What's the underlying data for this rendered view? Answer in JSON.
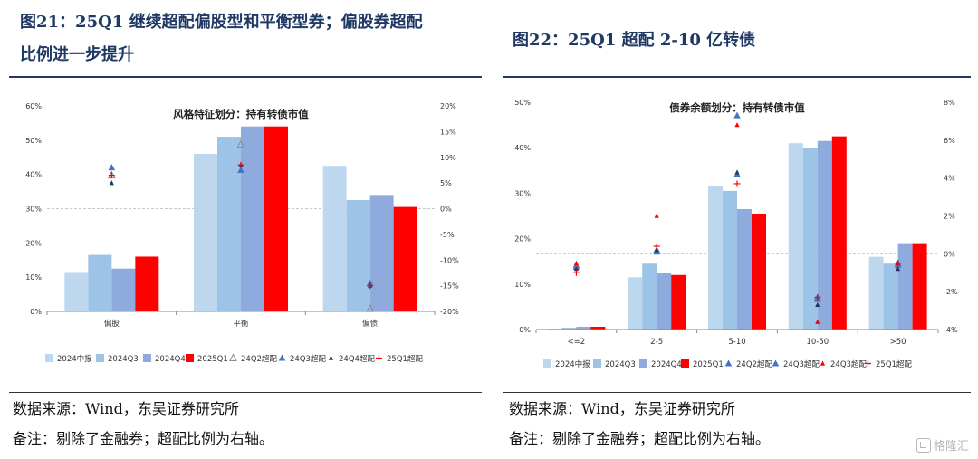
{
  "left": {
    "title_line1": "图21：25Q1 继续超配偏股型和平衡型券；偏股券超配",
    "title_line2": "比例进一步提升",
    "source": "数据来源：Wind，东吴证券研究所",
    "note": "备注：剔除了金融券；超配比例为右轴。"
  },
  "right": {
    "title": "图22：25Q1 超配 2-10 亿转债",
    "source": "数据来源：Wind，东吴证券研究所",
    "note": "备注：剔除了金融券；超配比例为右轴。"
  },
  "watermark": "格隆汇",
  "colors": {
    "s1": "#bdd7ee",
    "s2": "#9dc3e6",
    "s3": "#8faadc",
    "s4": "#ff0000",
    "m1": "#8c8c8c",
    "m2": "#4472c4",
    "m3": "#ff0000",
    "m4": "#1f3864",
    "m5": "#ff0000"
  },
  "chart_data": [
    {
      "type": "bar",
      "title": "风格特征划分：持有转债市值",
      "categories": [
        "偏股",
        "平衡",
        "偏债"
      ],
      "yticks": [
        "0%",
        "10%",
        "20%",
        "30%",
        "40%",
        "50%",
        "60%"
      ],
      "y2ticks": [
        "-20%",
        "-15%",
        "-10%",
        "-5%",
        "0%",
        "5%",
        "10%",
        "15%",
        "20%"
      ],
      "ylim": [
        0,
        60
      ],
      "y2lim": [
        -20,
        20
      ],
      "series": [
        {
          "name": "2024中报",
          "values": [
            11.5,
            46,
            42.5
          ]
        },
        {
          "name": "2024Q3",
          "values": [
            16.5,
            51,
            32.5
          ]
        },
        {
          "name": "2024Q4",
          "values": [
            12.5,
            54,
            34
          ]
        },
        {
          "name": "2025Q1",
          "values": [
            16,
            54,
            30.5
          ]
        }
      ],
      "markers": [
        {
          "name": "24Q2超配",
          "values": [
            6.5,
            12.5,
            -19.5
          ]
        },
        {
          "name": "24Q3超配",
          "values": [
            8,
            7.5,
            -14.5
          ]
        },
        {
          "name": "24Q4超配",
          "values": [
            5,
            8.5,
            -15
          ]
        },
        {
          "name": "25Q1超配",
          "values": [
            6.5,
            8.5,
            -15
          ]
        }
      ]
    },
    {
      "type": "bar",
      "title": "债券余额划分：持有转债市值",
      "categories": [
        "<=2",
        "2-5",
        "5-10",
        "10-50",
        ">50"
      ],
      "yticks": [
        "0%",
        "10%",
        "20%",
        "30%",
        "40%",
        "50%"
      ],
      "y2ticks": [
        "-4%",
        "-2%",
        "0%",
        "2%",
        "4%",
        "6%",
        "8%"
      ],
      "ylim": [
        0,
        50
      ],
      "y2lim": [
        -4,
        8
      ],
      "series": [
        {
          "name": "2024中报",
          "values": [
            0.2,
            11.5,
            31.5,
            41,
            16
          ]
        },
        {
          "name": "2024Q3",
          "values": [
            0.4,
            14.5,
            30.5,
            40,
            14.5
          ]
        },
        {
          "name": "2024Q4",
          "values": [
            0.6,
            12.5,
            26.5,
            41.5,
            19
          ]
        },
        {
          "name": "2025Q1",
          "values": [
            0.6,
            12,
            25.5,
            42.5,
            19
          ]
        }
      ],
      "markers": [
        {
          "name": "24Q2超配",
          "values": [
            -0.6,
            0.1,
            4.2,
            -2.3,
            -0.5
          ]
        },
        {
          "name": "24Q3超配",
          "values": [
            -0.7,
            0.2,
            7.3,
            -2.4,
            -0.6
          ]
        },
        {
          "name": "24Q4超配",
          "values": [
            -0.8,
            0.2,
            4.3,
            -2.7,
            -0.8
          ]
        },
        {
          "name": "24Q3超配 ",
          "values": [
            -0.5,
            2,
            6.8,
            -3.6,
            -0.5
          ]
        },
        {
          "name": "25Q1超配",
          "values": [
            -1,
            0.4,
            3.7,
            -2.3,
            -0.5
          ]
        }
      ]
    }
  ]
}
